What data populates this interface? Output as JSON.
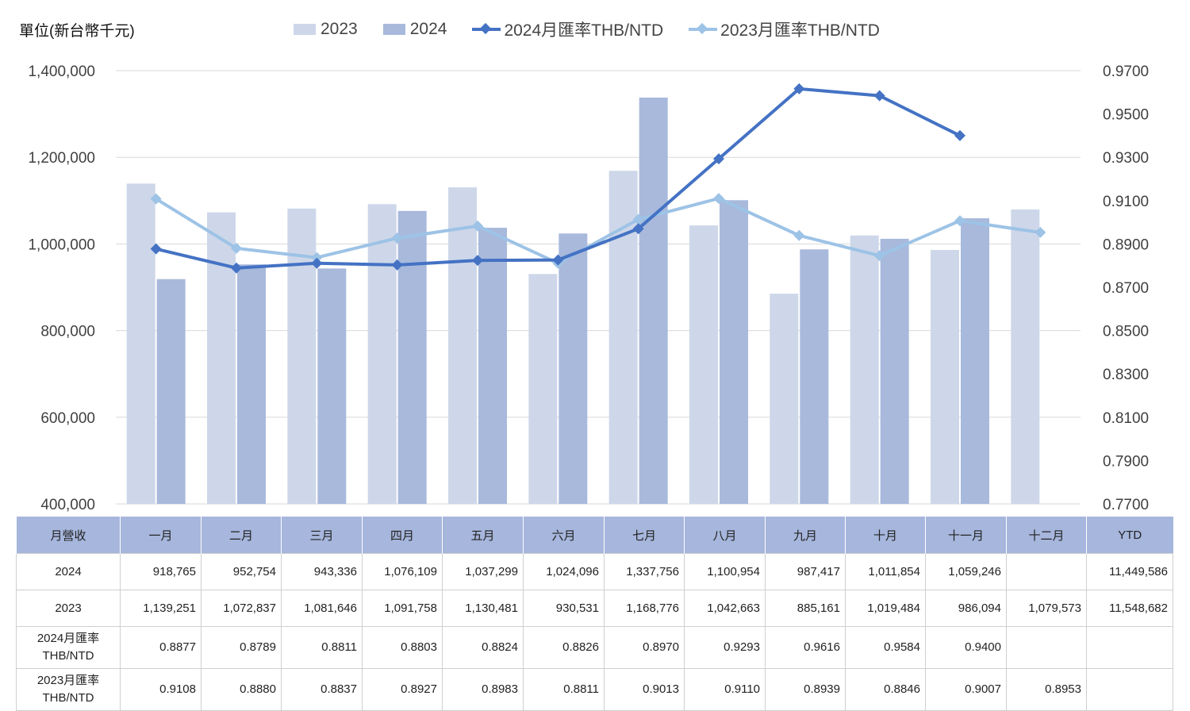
{
  "unit_label": "單位(新台幣千元)",
  "legend": {
    "bar_2023": "2023",
    "bar_2024": "2024",
    "line_2024": "2024月匯率THB/NTD",
    "line_2023": "2023月匯率THB/NTD"
  },
  "colors": {
    "bar_2023": "#cdd7e9",
    "bar_2024": "#a8b9dc",
    "line_2024": "#4472c4",
    "line_2023": "#9dc3e6",
    "gridline": "#d9d9d9",
    "table_header": "#a6b6dc"
  },
  "chart_data": {
    "type": "bar+line",
    "categories": [
      "一月",
      "二月",
      "三月",
      "四月",
      "五月",
      "六月",
      "七月",
      "八月",
      "九月",
      "十月",
      "十一月",
      "十二月"
    ],
    "bar_series": [
      {
        "name": "2023",
        "values": [
          1139251,
          1072837,
          1081646,
          1091758,
          1130481,
          930531,
          1168776,
          1042663,
          885161,
          1019484,
          986094,
          1079573
        ]
      },
      {
        "name": "2024",
        "values": [
          918765,
          952754,
          943336,
          1076109,
          1037299,
          1024096,
          1337756,
          1100954,
          987417,
          1011854,
          1059246,
          null
        ]
      }
    ],
    "line_series": [
      {
        "name": "2024月匯率THB/NTD",
        "values": [
          0.8877,
          0.8789,
          0.8811,
          0.8803,
          0.8824,
          0.8826,
          0.897,
          0.9293,
          0.9616,
          0.9584,
          0.94,
          null
        ]
      },
      {
        "name": "2023月匯率THB/NTD",
        "values": [
          0.9108,
          0.888,
          0.8837,
          0.8927,
          0.8983,
          0.8811,
          0.9013,
          0.911,
          0.8939,
          0.8846,
          0.9007,
          0.8953
        ]
      }
    ],
    "y_left": {
      "min": 400000,
      "max": 1400000,
      "ticks": [
        "400,000",
        "600,000",
        "800,000",
        "1,000,000",
        "1,200,000",
        "1,400,000"
      ]
    },
    "y_right": {
      "min": 0.77,
      "max": 0.97,
      "ticks": [
        "0.7700",
        "0.7900",
        "0.8100",
        "0.8300",
        "0.8500",
        "0.8700",
        "0.8900",
        "0.9100",
        "0.9300",
        "0.9500",
        "0.9700"
      ]
    },
    "legend_position": "top",
    "grid": true
  },
  "table": {
    "header": [
      "月營收",
      "一月",
      "二月",
      "三月",
      "四月",
      "五月",
      "六月",
      "七月",
      "八月",
      "九月",
      "十月",
      "十一月",
      "十二月",
      "YTD"
    ],
    "rows": [
      {
        "label": [
          "2024"
        ],
        "cells": [
          "918,765",
          "952,754",
          "943,336",
          "1,076,109",
          "1,037,299",
          "1,024,096",
          "1,337,756",
          "1,100,954",
          "987,417",
          "1,011,854",
          "1,059,246",
          "",
          "11,449,586"
        ]
      },
      {
        "label": [
          "2023"
        ],
        "cells": [
          "1,139,251",
          "1,072,837",
          "1,081,646",
          "1,091,758",
          "1,130,481",
          "930,531",
          "1,168,776",
          "1,042,663",
          "885,161",
          "1,019,484",
          "986,094",
          "1,079,573",
          "11,548,682"
        ]
      },
      {
        "label": [
          "2024月匯率",
          "THB/NTD"
        ],
        "cells": [
          "0.8877",
          "0.8789",
          "0.8811",
          "0.8803",
          "0.8824",
          "0.8826",
          "0.8970",
          "0.9293",
          "0.9616",
          "0.9584",
          "0.9400",
          "",
          ""
        ]
      },
      {
        "label": [
          "2023月匯率",
          "THB/NTD"
        ],
        "cells": [
          "0.9108",
          "0.8880",
          "0.8837",
          "0.8927",
          "0.8983",
          "0.8811",
          "0.9013",
          "0.9110",
          "0.8939",
          "0.8846",
          "0.9007",
          "0.8953",
          ""
        ]
      }
    ]
  }
}
